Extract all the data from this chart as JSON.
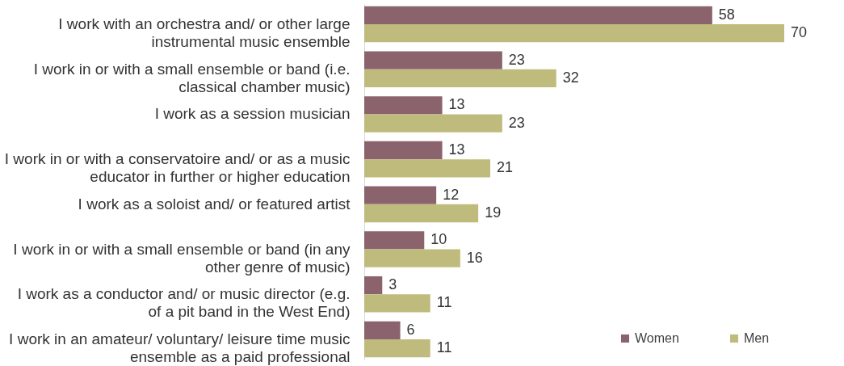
{
  "chart_data": {
    "type": "bar",
    "orientation": "horizontal",
    "data_labels": true,
    "grid": false,
    "legend": "bottom right",
    "categories": [
      "I work with an orchestra and/ or other large instrumental music ensemble",
      "I work in or with a small ensemble or band (i.e. classical chamber music)",
      "I work as a session musician",
      "I work in or with a conservatoire and/ or as a music educator in further or higher education",
      "I work as a soloist and/ or featured artist",
      "I work in or with a small ensemble or band (in any other genre of music)",
      "I work as a conductor and/ or music director (e.g. of a pit band in the West End)",
      "I work in an amateur/ voluntary/ leisure time music ensemble as a paid professional"
    ],
    "series": [
      {
        "name": "Women",
        "color": "#8b636d",
        "values": [
          58,
          23,
          13,
          13,
          12,
          10,
          3,
          6
        ]
      },
      {
        "name": "Men",
        "color": "#bfbb7d",
        "values": [
          70,
          32,
          23,
          21,
          19,
          16,
          11,
          11
        ]
      }
    ]
  }
}
